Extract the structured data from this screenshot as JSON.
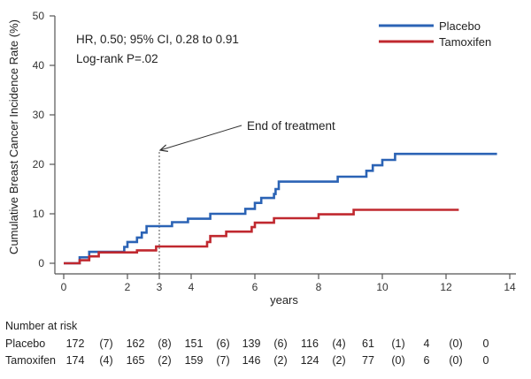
{
  "chart_data": {
    "type": "line",
    "title": "",
    "xlabel": "years",
    "ylabel": "Cumulative Breast Cancer Incidence Rate (%)",
    "xlim": [
      0,
      14
    ],
    "ylim": [
      0,
      50
    ],
    "x_ticks": [
      "0",
      "2",
      "3",
      "4",
      "6",
      "8",
      "10",
      "12",
      "14"
    ],
    "x_tick_values": [
      0,
      2,
      3,
      4,
      6,
      8,
      10,
      12,
      14
    ],
    "y_ticks": [
      "0",
      "10",
      "20",
      "30",
      "40",
      "50"
    ],
    "y_tick_values": [
      0,
      10,
      20,
      30,
      40,
      50
    ],
    "annotations": {
      "stats_line1": "HR, 0.50; 95% CI, 0.28 to 0.91",
      "stats_line2": "Log-rank P=.02",
      "treatment_label": "End of treatment",
      "treatment_x": 3
    },
    "series": [
      {
        "name": "Placebo",
        "color": "#2b63b5",
        "points": [
          [
            0,
            0
          ],
          [
            0.5,
            0
          ],
          [
            0.5,
            1.2
          ],
          [
            0.8,
            1.2
          ],
          [
            0.8,
            2.3
          ],
          [
            1.9,
            2.3
          ],
          [
            1.9,
            3.3
          ],
          [
            2.0,
            3.3
          ],
          [
            2.0,
            4.3
          ],
          [
            2.3,
            4.3
          ],
          [
            2.3,
            5.2
          ],
          [
            2.45,
            5.2
          ],
          [
            2.45,
            6.2
          ],
          [
            2.6,
            6.2
          ],
          [
            2.6,
            7.5
          ],
          [
            3.4,
            7.5
          ],
          [
            3.4,
            8.3
          ],
          [
            3.9,
            8.3
          ],
          [
            3.9,
            9.0
          ],
          [
            4.6,
            9.0
          ],
          [
            4.6,
            10.0
          ],
          [
            5.7,
            10.0
          ],
          [
            5.7,
            11.0
          ],
          [
            6.0,
            11.0
          ],
          [
            6.0,
            12.2
          ],
          [
            6.2,
            12.2
          ],
          [
            6.2,
            13.2
          ],
          [
            6.6,
            13.2
          ],
          [
            6.6,
            14.0
          ],
          [
            6.65,
            14.0
          ],
          [
            6.65,
            15.0
          ],
          [
            6.75,
            15.0
          ],
          [
            6.75,
            16.5
          ],
          [
            8.6,
            16.5
          ],
          [
            8.6,
            17.5
          ],
          [
            9.5,
            17.5
          ],
          [
            9.5,
            18.7
          ],
          [
            9.7,
            18.7
          ],
          [
            9.7,
            19.8
          ],
          [
            10.0,
            19.8
          ],
          [
            10.0,
            20.9
          ],
          [
            10.4,
            20.9
          ],
          [
            10.4,
            22.1
          ],
          [
            13.6,
            22.1
          ]
        ]
      },
      {
        "name": "Tamoxifen",
        "color": "#c0282f",
        "points": [
          [
            0,
            0
          ],
          [
            0.5,
            0
          ],
          [
            0.5,
            0.6
          ],
          [
            0.8,
            0.6
          ],
          [
            0.8,
            1.4
          ],
          [
            1.1,
            1.4
          ],
          [
            1.1,
            2.2
          ],
          [
            2.3,
            2.2
          ],
          [
            2.3,
            2.6
          ],
          [
            2.9,
            2.6
          ],
          [
            2.9,
            3.4
          ],
          [
            4.5,
            3.4
          ],
          [
            4.5,
            4.3
          ],
          [
            4.6,
            4.3
          ],
          [
            4.6,
            5.5
          ],
          [
            5.1,
            5.5
          ],
          [
            5.1,
            6.4
          ],
          [
            5.9,
            6.4
          ],
          [
            5.9,
            7.3
          ],
          [
            6.0,
            7.3
          ],
          [
            6.0,
            8.2
          ],
          [
            6.6,
            8.2
          ],
          [
            6.6,
            9.1
          ],
          [
            8.0,
            9.1
          ],
          [
            8.0,
            9.9
          ],
          [
            9.1,
            9.9
          ],
          [
            9.1,
            10.8
          ],
          [
            12.4,
            10.8
          ]
        ]
      }
    ],
    "risk_table": {
      "title": "Number at risk",
      "rows": [
        {
          "label": "Placebo",
          "values": [
            "172",
            "(7)",
            "162",
            "(8)",
            "151",
            "(6)",
            "139",
            "(6)",
            "116",
            "(4)",
            "61",
            "(1)",
            "4",
            "(0)",
            "0"
          ]
        },
        {
          "label": "Tamoxifen",
          "values": [
            "174",
            "(4)",
            "165",
            "(2)",
            "159",
            "(7)",
            "146",
            "(2)",
            "124",
            "(2)",
            "77",
            "(0)",
            "6",
            "(0)",
            "0"
          ]
        }
      ]
    }
  }
}
